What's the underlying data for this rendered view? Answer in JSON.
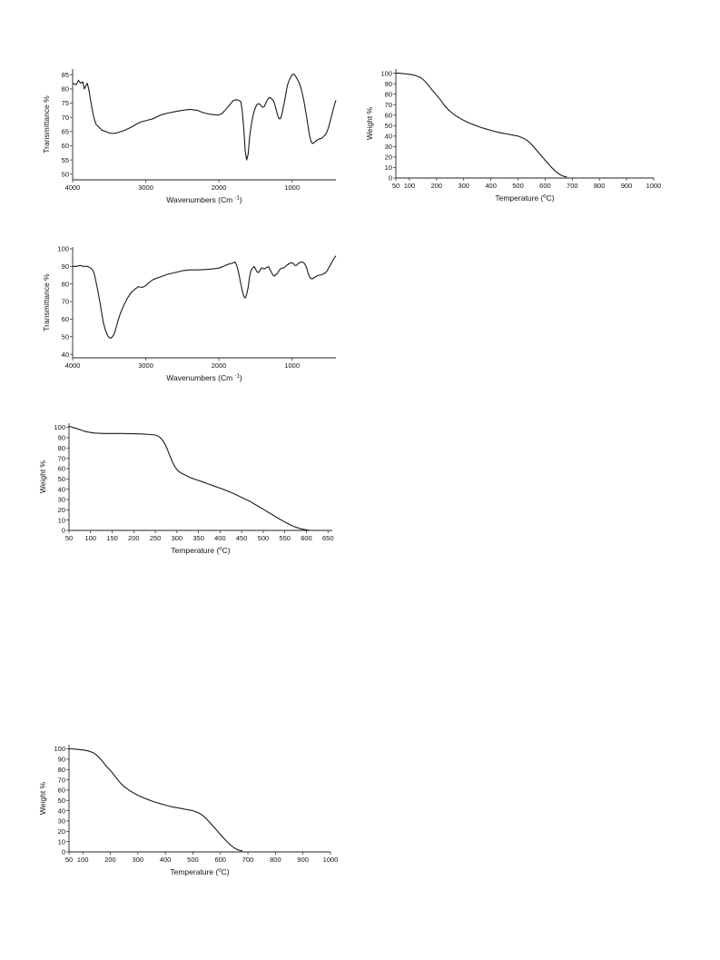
{
  "chart_data": [
    {
      "type": "line",
      "xlabel": "Wavenumbers (Cm ",
      "xlabel_sup": "-1",
      "xlabel_end": ")",
      "ylabel": "Transmittance %",
      "xlim": [
        4000,
        400
      ],
      "ylim": [
        48,
        87
      ],
      "x_reversed": true,
      "xticks": [
        4000,
        3000,
        2000,
        1000
      ],
      "yticks": [
        50,
        55,
        60,
        65,
        70,
        75,
        80,
        85
      ],
      "series": [
        {
          "x": [
            4000,
            3950,
            3920,
            3890,
            3860,
            3840,
            3800,
            3780,
            3760,
            3740,
            3720,
            3700,
            3680,
            3640,
            3600,
            3550,
            3500,
            3450,
            3400,
            3300,
            3200,
            3100,
            3050,
            3000,
            2900,
            2800,
            2700,
            2600,
            2500,
            2400,
            2300,
            2200,
            2100,
            2000,
            1950,
            1900,
            1850,
            1800,
            1760,
            1730,
            1700,
            1680,
            1660,
            1640,
            1620,
            1600,
            1580,
            1560,
            1540,
            1520,
            1500,
            1480,
            1460,
            1440,
            1420,
            1400,
            1380,
            1360,
            1340,
            1320,
            1300,
            1280,
            1260,
            1240,
            1220,
            1200,
            1180,
            1160,
            1140,
            1120,
            1100,
            1080,
            1060,
            1040,
            1020,
            1000,
            980,
            960,
            940,
            920,
            900,
            880,
            860,
            840,
            820,
            800,
            780,
            760,
            740,
            720,
            700,
            680,
            660,
            640,
            620,
            600,
            580,
            560,
            540,
            520,
            500,
            480,
            460,
            440,
            420,
            400
          ],
          "y": [
            82,
            81.5,
            83,
            82,
            82.5,
            80,
            82,
            80,
            77,
            74,
            71,
            69,
            67.5,
            66.5,
            65.5,
            65,
            64.5,
            64.3,
            64.5,
            65.3,
            66.5,
            68,
            68.5,
            68.8,
            69.5,
            70.8,
            71.5,
            72,
            72.5,
            72.8,
            72.5,
            71.5,
            71,
            70.8,
            71.5,
            73,
            74.5,
            76,
            76.2,
            76,
            75.5,
            72,
            66,
            58,
            55,
            57,
            63,
            67,
            70,
            72,
            73.5,
            74.5,
            74.8,
            74.6,
            74,
            73.5,
            73.8,
            75,
            76,
            76.8,
            77,
            76.5,
            76,
            75,
            73,
            71,
            69.5,
            69.5,
            71,
            73.5,
            76,
            79,
            81.5,
            83,
            84,
            85,
            85.2,
            84.8,
            84,
            83,
            82,
            80.5,
            78.5,
            76,
            73,
            70,
            66.5,
            63.5,
            61.5,
            60.8,
            61,
            61.5,
            62,
            62.2,
            62.5,
            62.5,
            63,
            63.5,
            64,
            65,
            66.5,
            68.5,
            70.5,
            72.5,
            74.5,
            76
          ]
        }
      ]
    },
    {
      "type": "line",
      "xlabel": "Temperature (",
      "xlabel_sup": "o",
      "xlabel_end": "C)",
      "ylabel": "Weight  %",
      "xlim": [
        50,
        1000
      ],
      "ylim": [
        0,
        104
      ],
      "xticks": [
        50,
        100,
        200,
        300,
        400,
        500,
        600,
        700,
        800,
        900,
        1000
      ],
      "yticks": [
        0,
        10,
        20,
        30,
        40,
        50,
        60,
        70,
        80,
        90,
        100
      ],
      "series": [
        {
          "x": [
            50,
            60,
            70,
            80,
            90,
            100,
            110,
            120,
            130,
            140,
            150,
            160,
            170,
            180,
            190,
            200,
            210,
            220,
            230,
            240,
            250,
            260,
            270,
            280,
            290,
            300,
            320,
            340,
            360,
            380,
            400,
            420,
            440,
            460,
            480,
            500,
            510,
            520,
            530,
            540,
            550,
            560,
            570,
            580,
            590,
            600,
            610,
            620,
            630,
            640,
            650,
            660,
            670,
            680
          ],
          "y": [
            100,
            100,
            99.8,
            99.5,
            99.2,
            99,
            98.5,
            98,
            97,
            96,
            94,
            91.5,
            88.5,
            85,
            82,
            79,
            76,
            72.5,
            69,
            66,
            63.5,
            61.5,
            59.5,
            58,
            56.5,
            55,
            52.5,
            50.5,
            48.5,
            47,
            45.5,
            44,
            43,
            42,
            41,
            40,
            39,
            38,
            36.5,
            34.5,
            32,
            29,
            26,
            23,
            20,
            17,
            14,
            11,
            8.5,
            6,
            4,
            2.5,
            1.5,
            1
          ]
        }
      ]
    },
    {
      "type": "line",
      "xlabel": "Wavenumbers (Cm ",
      "xlabel_sup": "-1",
      "xlabel_end": ")",
      "ylabel": "Transmittance %",
      "xlim": [
        4000,
        400
      ],
      "ylim": [
        38,
        101
      ],
      "x_reversed": true,
      "xticks": [
        4000,
        3000,
        2000,
        1000
      ],
      "yticks": [
        40,
        50,
        60,
        70,
        80,
        90,
        100
      ],
      "series": [
        {
          "x": [
            4000,
            3950,
            3900,
            3850,
            3800,
            3750,
            3720,
            3700,
            3680,
            3650,
            3620,
            3600,
            3580,
            3550,
            3520,
            3500,
            3480,
            3460,
            3440,
            3420,
            3400,
            3380,
            3350,
            3300,
            3250,
            3200,
            3150,
            3100,
            3050,
            3000,
            2950,
            2900,
            2800,
            2700,
            2600,
            2500,
            2400,
            2300,
            2200,
            2100,
            2000,
            1950,
            1900,
            1850,
            1800,
            1780,
            1760,
            1740,
            1720,
            1700,
            1680,
            1660,
            1640,
            1620,
            1600,
            1580,
            1560,
            1540,
            1520,
            1500,
            1480,
            1460,
            1440,
            1420,
            1400,
            1380,
            1360,
            1340,
            1320,
            1300,
            1280,
            1260,
            1240,
            1220,
            1200,
            1180,
            1160,
            1140,
            1120,
            1100,
            1080,
            1060,
            1040,
            1020,
            1000,
            980,
            960,
            940,
            920,
            900,
            880,
            860,
            840,
            820,
            800,
            780,
            760,
            740,
            720,
            700,
            680,
            660,
            640,
            620,
            600,
            580,
            560,
            540,
            520,
            500,
            480,
            460,
            440,
            420,
            400
          ],
          "y": [
            90,
            90,
            90.5,
            90,
            90,
            89,
            87.5,
            85,
            81,
            75,
            68,
            63,
            58,
            53.5,
            50.5,
            49.5,
            49.2,
            49.8,
            51,
            53,
            56,
            59,
            63,
            68,
            72,
            75,
            77,
            78.5,
            78,
            79,
            81,
            82.5,
            84,
            85.5,
            86.5,
            87.5,
            88,
            88,
            88.2,
            88.5,
            89,
            89.8,
            90.8,
            91.5,
            92,
            92.5,
            91,
            88,
            84,
            80,
            76,
            73,
            72,
            74,
            78,
            84,
            88,
            89,
            90,
            88.5,
            87,
            86.5,
            87.5,
            89,
            89,
            88.5,
            89,
            89.5,
            89.8,
            88,
            86.5,
            85,
            84.5,
            85.5,
            86,
            87.5,
            88.5,
            89,
            89,
            89.5,
            90.5,
            91,
            91.5,
            92,
            92,
            91.5,
            90.5,
            90.5,
            91.5,
            92,
            92.5,
            92.5,
            92,
            91,
            89,
            86,
            84,
            83,
            83,
            83.5,
            84,
            84.5,
            85,
            85,
            85.2,
            85.5,
            86,
            86.5,
            87.5,
            89,
            90.5,
            92,
            93.5,
            95,
            96
          ]
        }
      ]
    },
    {
      "type": "line",
      "xlabel": "Temperature (",
      "xlabel_sup": "o",
      "xlabel_end": "C)",
      "ylabel": "Weight  %",
      "xlim": [
        50,
        660
      ],
      "ylim": [
        0,
        104
      ],
      "xticks": [
        50,
        100,
        150,
        200,
        250,
        300,
        350,
        400,
        450,
        500,
        550,
        600,
        650
      ],
      "yticks": [
        0,
        10,
        20,
        30,
        40,
        50,
        60,
        70,
        80,
        90,
        100
      ],
      "series": [
        {
          "x": [
            50,
            55,
            60,
            70,
            80,
            90,
            100,
            110,
            120,
            130,
            150,
            170,
            200,
            220,
            240,
            250,
            255,
            260,
            265,
            270,
            275,
            280,
            285,
            290,
            295,
            300,
            305,
            310,
            320,
            330,
            340,
            350,
            360,
            370,
            380,
            390,
            400,
            410,
            420,
            430,
            440,
            450,
            460,
            470,
            480,
            490,
            500,
            510,
            520,
            530,
            540,
            550,
            560,
            570,
            580,
            590,
            600,
            605,
            610
          ],
          "y": [
            101,
            100.5,
            99.8,
            98.5,
            97,
            95.8,
            95,
            94.5,
            94.2,
            94,
            94,
            94,
            93.8,
            93.6,
            93,
            92.5,
            91.8,
            90.5,
            88.5,
            85.5,
            81.5,
            76.5,
            71,
            66,
            62,
            59,
            57,
            55.5,
            53.5,
            51.5,
            49.8,
            48.5,
            47,
            45.5,
            44,
            42.5,
            41,
            39.5,
            37.8,
            36,
            34,
            32,
            30,
            28,
            25.5,
            23,
            20.5,
            18,
            15.5,
            13,
            10.5,
            8.2,
            6,
            4,
            2.5,
            1.2,
            0.5,
            0.2,
            0
          ]
        }
      ]
    },
    {
      "type": "line",
      "xlabel": "Temperature (",
      "xlabel_sup": "o",
      "xlabel_end": "C)",
      "ylabel": "Weight  %",
      "xlim": [
        50,
        1000
      ],
      "ylim": [
        0,
        104
      ],
      "xticks": [
        50,
        100,
        200,
        300,
        400,
        500,
        600,
        700,
        800,
        900,
        1000
      ],
      "yticks": [
        0,
        10,
        20,
        30,
        40,
        50,
        60,
        70,
        80,
        90,
        100
      ],
      "series": [
        {
          "x": [
            50,
            60,
            70,
            80,
            90,
            100,
            110,
            120,
            130,
            140,
            150,
            160,
            170,
            180,
            190,
            200,
            210,
            220,
            230,
            240,
            250,
            260,
            270,
            280,
            290,
            300,
            320,
            340,
            360,
            380,
            400,
            420,
            440,
            460,
            480,
            500,
            510,
            520,
            530,
            540,
            550,
            560,
            570,
            580,
            590,
            600,
            610,
            620,
            630,
            640,
            650,
            660,
            670,
            680
          ],
          "y": [
            100,
            100,
            99.8,
            99.5,
            99.2,
            99,
            98.5,
            98,
            97,
            96,
            94,
            91.5,
            88.5,
            85,
            82,
            79,
            76,
            72.5,
            69,
            66,
            63.5,
            61.5,
            59.5,
            58,
            56.5,
            55,
            52.5,
            50.5,
            48.5,
            47,
            45.5,
            44,
            43,
            42,
            41,
            40,
            39,
            38,
            36.5,
            34.5,
            32,
            29,
            26,
            23,
            20,
            17,
            14,
            11,
            8.5,
            6,
            4,
            2.5,
            1.5,
            1
          ]
        }
      ]
    }
  ]
}
